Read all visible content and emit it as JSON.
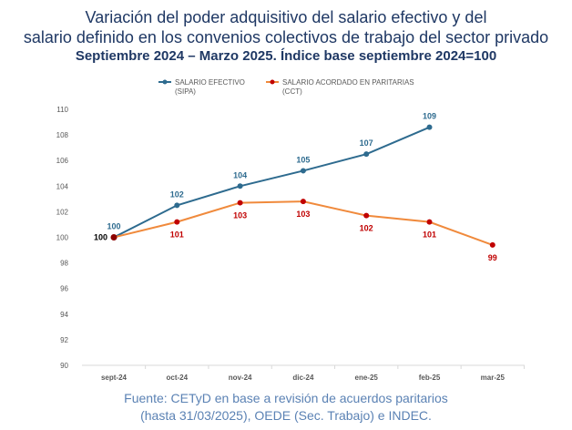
{
  "title": {
    "line1": "Variación del poder adquisitivo del salario efectivo y del",
    "line2": "salario definido en los convenios colectivos de trabajo del sector privado",
    "subtitle": "Septiembre 2024 – Marzo 2025. Índice base septiembre 2024=100"
  },
  "source": {
    "line1": "Fuente: CETyD en base a revisión de acuerdos paritarios",
    "line2": "(hasta 31/03/2025), OEDE (Sec. Trabajo) e INDEC."
  },
  "colors": {
    "sipa": "#2e6b8f",
    "cct": "#f08a3c",
    "cct_marker": "#c00000",
    "axis_text": "#595959",
    "grid": "#d9d9d9"
  },
  "chart_data": {
    "type": "line",
    "categories": [
      "sept-24",
      "oct-24",
      "nov-24",
      "dic-24",
      "ene-25",
      "feb-25",
      "mar-25"
    ],
    "ylim": [
      90,
      110
    ],
    "yticks": [
      90,
      92,
      94,
      96,
      98,
      100,
      102,
      104,
      106,
      108,
      110
    ],
    "grid": false,
    "legend_position": "top",
    "series": [
      {
        "name": "SALARIO EFECTIVO",
        "name_line2": "(SIPA)",
        "values": [
          100,
          102.5,
          104,
          105.2,
          106.5,
          108.6,
          null
        ],
        "labels": [
          "100",
          "102",
          "104",
          "105",
          "107",
          "109",
          ""
        ]
      },
      {
        "name": "SALARIO ACORDADO EN PARITARIAS",
        "name_line2": "(CCT)",
        "values": [
          100,
          101.2,
          102.7,
          102.8,
          101.7,
          101.2,
          99.4
        ],
        "labels": [
          "",
          "101",
          "103",
          "103",
          "102",
          "101",
          "99"
        ]
      }
    ]
  }
}
